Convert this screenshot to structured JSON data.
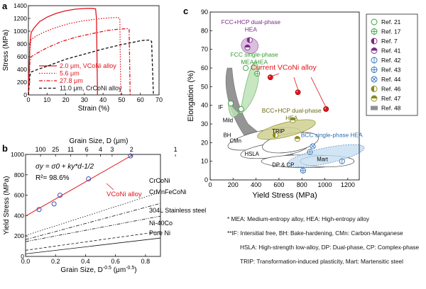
{
  "chart_data": [
    {
      "panel": "a",
      "type": "line",
      "xlabel": "Strain (%)",
      "ylabel": "Stress (MPa)",
      "xlim": [
        0,
        70
      ],
      "ylim": [
        0,
        1400
      ],
      "xticks": [
        0,
        10,
        20,
        30,
        40,
        50,
        60,
        70
      ],
      "yticks": [
        0,
        200,
        400,
        600,
        800,
        1000,
        1200,
        1400
      ],
      "legend_position": "lower-center",
      "series": [
        {
          "name": "2.0 μm, VCoNi alloy",
          "color": "#e0141c",
          "dash": "solid",
          "x": [
            0,
            0.8,
            1.5,
            3,
            6,
            10,
            15,
            20,
            25,
            30,
            34,
            36,
            36.5,
            37
          ],
          "y": [
            0,
            800,
            980,
            1050,
            1150,
            1220,
            1280,
            1320,
            1345,
            1355,
            1358,
            1350,
            1200,
            0
          ]
        },
        {
          "name": "5.6 μm",
          "color": "#e0141c",
          "dash": "dot",
          "x": [
            0,
            0.8,
            1.5,
            4,
            8,
            15,
            22,
            30,
            38,
            44,
            48,
            49,
            49.5
          ],
          "y": [
            0,
            700,
            870,
            920,
            980,
            1060,
            1120,
            1165,
            1195,
            1210,
            1215,
            1200,
            0
          ]
        },
        {
          "name": "27.8 μm",
          "color": "#e0141c",
          "dash": "dashdot",
          "x": [
            0,
            0.8,
            1.5,
            5,
            10,
            18,
            26,
            34,
            42,
            48,
            53,
            54,
            54.5
          ],
          "y": [
            0,
            520,
            600,
            660,
            740,
            840,
            910,
            960,
            1010,
            1030,
            1040,
            1030,
            0
          ]
        },
        {
          "name": "11.0 μm, CrCoNi alloy",
          "color": "#111111",
          "dash": "dash",
          "x": [
            0,
            0.8,
            1.5,
            5,
            10,
            20,
            30,
            40,
            50,
            56,
            60,
            63,
            65,
            66,
            67
          ],
          "y": [
            0,
            300,
            360,
            400,
            450,
            560,
            640,
            720,
            790,
            825,
            850,
            860,
            860,
            840,
            0
          ]
        }
      ]
    },
    {
      "panel": "b",
      "type": "line",
      "xlabel": "Grain Size, D",
      "xlabel_exp": "-0.5",
      "xlabel_unit_pre": " (μm",
      "xlabel_unit_post": ")",
      "ylabel": "Yield Stress (MPa)",
      "top_axis_label": "Grain Size, D (μm)",
      "top_ticks": [
        "100",
        "25",
        "11",
        "6",
        "4",
        "3",
        "2",
        "1"
      ],
      "top_ticks_d": [
        100,
        25,
        11,
        6,
        4,
        3,
        2,
        1
      ],
      "xlim": [
        0,
        0.9
      ],
      "ylim": [
        0,
        1000
      ],
      "xticks": [
        "0.0",
        "0.2",
        "0.4",
        "0.6",
        "0.8"
      ],
      "yticks": [
        0,
        200,
        400,
        600,
        800,
        1000
      ],
      "equation": "σy = σ0 + ky*d-1/2",
      "r2": "R²= 98.6%",
      "fit_label": "VCoNi alloy",
      "points_x": [
        0.09,
        0.19,
        0.23,
        0.42,
        0.7
      ],
      "points_y": [
        460,
        515,
        600,
        760,
        985
      ],
      "fit_line": {
        "x": [
          0,
          0.72
        ],
        "y": [
          395,
          1000
        ]
      },
      "reference_lines": [
        {
          "name": "CrCoNi",
          "dash": "dot",
          "x": [
            0,
            0.9
          ],
          "y": [
            205,
            630
          ]
        },
        {
          "name": "CrMnFeCoNi",
          "dash": "dashdot",
          "x": [
            0,
            0.9
          ],
          "y": [
            165,
            520
          ]
        },
        {
          "name": "304L Stainless steel",
          "dash": "dashdotdot",
          "x": [
            0,
            0.9
          ],
          "y": [
            145,
            395
          ]
        },
        {
          "name": "Ni-40Co",
          "dash": "dash",
          "x": [
            0,
            0.9
          ],
          "y": [
            60,
            245
          ]
        },
        {
          "name": "Pure Ni",
          "dash": "solid",
          "x": [
            0,
            0.9
          ],
          "y": [
            25,
            180
          ]
        }
      ]
    },
    {
      "panel": "c",
      "type": "scatter",
      "xlabel": "Yield Stress (MPa)",
      "ylabel": "Elongation (%)",
      "xlim": [
        0,
        1300
      ],
      "ylim": [
        0,
        90
      ],
      "xticks": [
        0,
        200,
        400,
        600,
        800,
        1000,
        1200
      ],
      "yticks": [
        0,
        10,
        20,
        30,
        40,
        50,
        60,
        70,
        80,
        90
      ],
      "legend_position": "right",
      "legend": [
        {
          "name": "Ref. 21",
          "marker": "open-circle",
          "color": "#2f9e2f"
        },
        {
          "name": "Ref. 17",
          "marker": "circle-plus",
          "color": "#2f9e2f"
        },
        {
          "name": "Ref. 7",
          "marker": "half-purple",
          "color": "#7b2a86"
        },
        {
          "name": "Ref. 41",
          "marker": "half-purple-top",
          "color": "#7b2a86"
        },
        {
          "name": "Ref. 42",
          "marker": "circle-vline",
          "color": "#2c6fb5"
        },
        {
          "name": "Ref. 43",
          "marker": "circle-plus",
          "color": "#2c6fb5"
        },
        {
          "name": "Ref. 44",
          "marker": "circle-x",
          "color": "#2c6fb5"
        },
        {
          "name": "Ref. 46",
          "marker": "half-olive",
          "color": "#8a8a1a"
        },
        {
          "name": "Ref. 47",
          "marker": "half-olive-top",
          "color": "#8a8a1a"
        },
        {
          "name": "Ref. 48",
          "marker": "gray-rect",
          "color": "#909090"
        }
      ],
      "points": [
        {
          "ref": "Ref. 21",
          "x": 180,
          "y": 41
        },
        {
          "ref": "Ref. 21",
          "x": 270,
          "y": 38
        },
        {
          "ref": "Ref. 21",
          "x": 310,
          "y": 60
        },
        {
          "ref": "Ref. 17",
          "x": 410,
          "y": 57
        },
        {
          "ref": "Ref. 7",
          "x": 345,
          "y": 75
        },
        {
          "ref": "Ref. 41",
          "x": 325,
          "y": 71
        },
        {
          "ref": "Ref. 42",
          "x": 1150,
          "y": 10
        },
        {
          "ref": "Ref. 43",
          "x": 810,
          "y": 5
        },
        {
          "ref": "Ref. 43",
          "x": 870,
          "y": 15
        },
        {
          "ref": "Ref. 44",
          "x": 895,
          "y": 18
        },
        {
          "ref": "Ref. 46",
          "x": 570,
          "y": 24
        },
        {
          "ref": "Ref. 47",
          "x": 720,
          "y": 32
        },
        {
          "ref": "Ref. 47",
          "x": 760,
          "y": 22
        },
        {
          "ref": "VCoNi",
          "x": 525,
          "y": 55
        },
        {
          "ref": "VCoNi",
          "x": 765,
          "y": 47
        },
        {
          "ref": "VCoNi",
          "x": 1010,
          "y": 38
        }
      ],
      "annotations": {
        "current": "Current VCoNi alloy",
        "fcc_hcp": [
          "FCC+HCP dual-phase",
          "HEA"
        ],
        "fcc_single": [
          "FCC single-phase",
          "MEA/HEA"
        ],
        "bcc_hcp": [
          "BCC+HCP dual-phase",
          "HEA"
        ],
        "bcc_single": "BCC single-phase HEA",
        "steels": [
          "IF",
          "Mild",
          "BH",
          "CMn",
          "HSLA",
          "TRIP",
          "DP & CP",
          "Mart"
        ]
      }
    }
  ],
  "panel_labels": [
    "a",
    "b",
    "c"
  ],
  "notes": [
    "*  MEA: Medium-entropy alloy, HEA: High-entropy alloy",
    "**IF: Intersitial free, BH: Bake-hardening, CMn: Carbon-Manganese",
    "HSLA: High-strength low-alloy, DP: Dual-phase, CP: Complex-phase",
    "TRIP: Transformation-induced plasticity, Mart: Martensitic steel"
  ],
  "colors": {
    "red": "#e0141c",
    "green": "#2f9e2f",
    "purple": "#7b2a86",
    "blue": "#2c6fb5",
    "olive": "#8a8a1a",
    "gray": "#909090"
  }
}
